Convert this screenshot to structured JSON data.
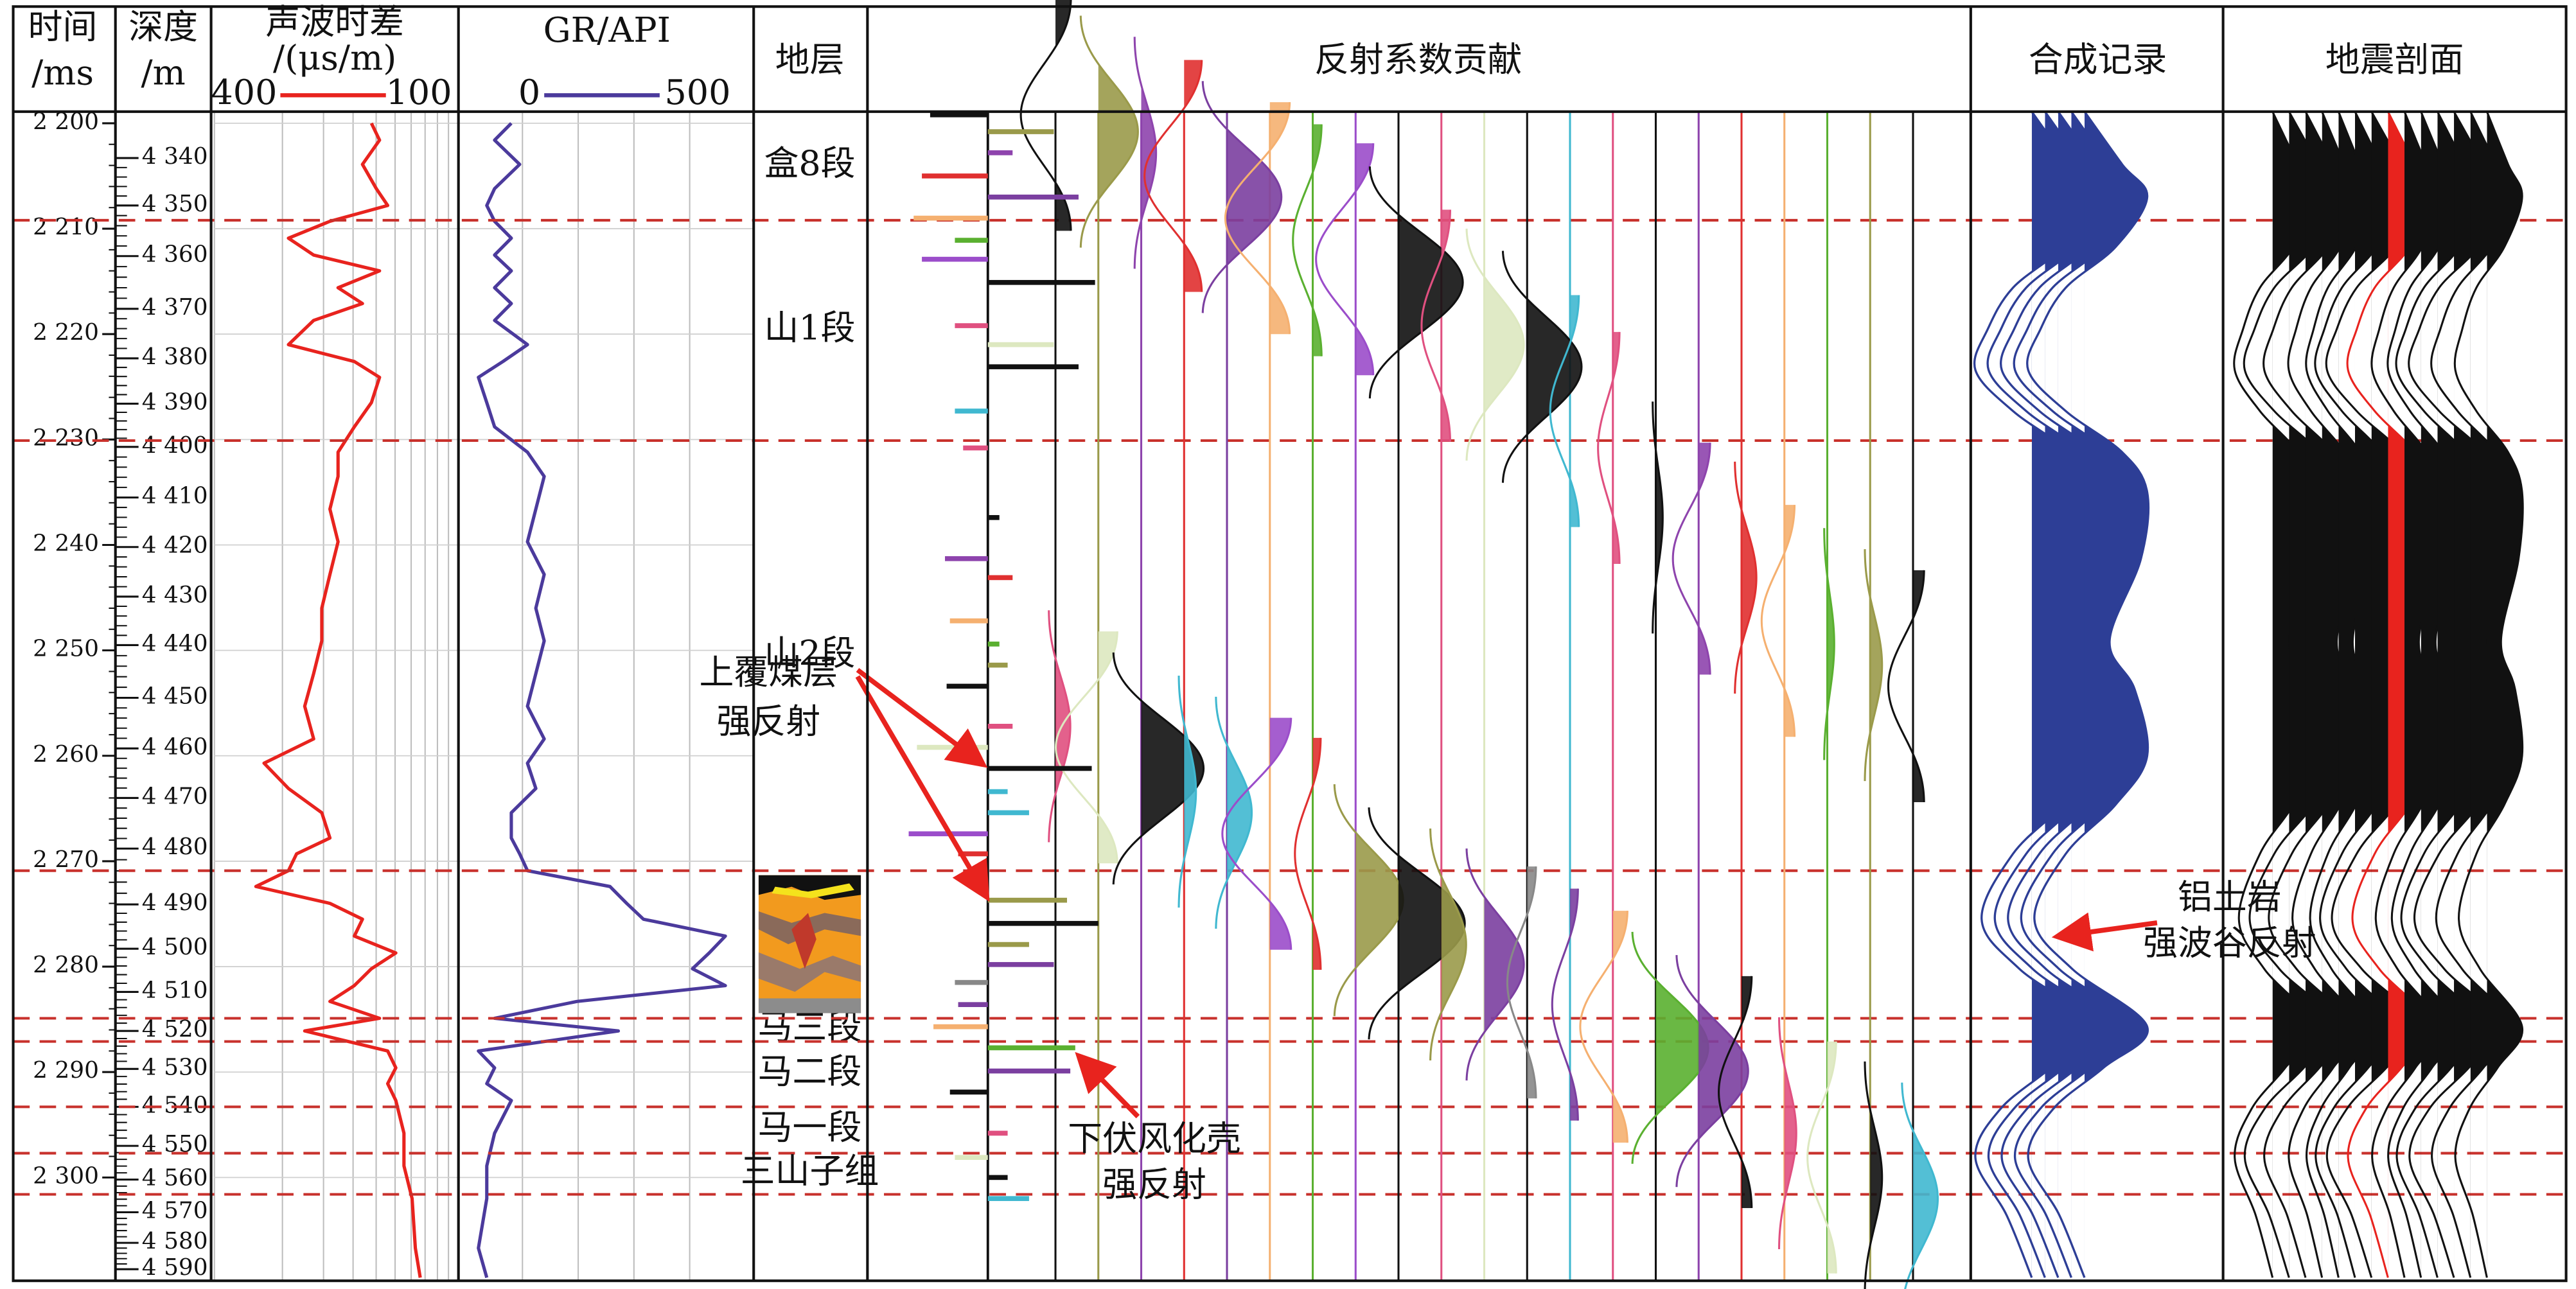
{
  "headers": {
    "time": [
      "时间",
      "/ms"
    ],
    "depth": [
      "深度",
      "/m"
    ],
    "ac": [
      "声波时差",
      "/(μs/m)"
    ],
    "gr": "GR/API",
    "formation": "地层",
    "reflection": "反射系数贡献",
    "synthetic": "合成记录",
    "seismic": "地震剖面"
  },
  "time_axis": {
    "lim": [
      2198.9,
      2309.8
    ],
    "ticks": [
      {
        "value": 2200,
        "label": "2 200"
      },
      {
        "value": 2210,
        "label": "2 210"
      },
      {
        "value": 2220,
        "label": "2 220"
      },
      {
        "value": 2230,
        "label": "2 230"
      },
      {
        "value": 2240,
        "label": "2 240"
      },
      {
        "value": 2250,
        "label": "2 250"
      },
      {
        "value": 2260,
        "label": "2 260"
      },
      {
        "value": 2270,
        "label": "2 270"
      },
      {
        "value": 2280,
        "label": "2 280"
      },
      {
        "value": 2290,
        "label": "2 290"
      },
      {
        "value": 2300,
        "label": "2 300"
      }
    ]
  },
  "depth_axis": {
    "ticks": [
      {
        "value": 4340,
        "label": "4 340",
        "time": 2203.3
      },
      {
        "value": 4350,
        "label": "4 350",
        "time": 2207.8
      },
      {
        "value": 4360,
        "label": "4 360",
        "time": 2212.6
      },
      {
        "value": 4370,
        "label": "4 370",
        "time": 2217.6
      },
      {
        "value": 4380,
        "label": "4 380",
        "time": 2222.3
      },
      {
        "value": 4390,
        "label": "4 390",
        "time": 2226.6
      },
      {
        "value": 4400,
        "label": "4 400",
        "time": 2230.7
      },
      {
        "value": 4410,
        "label": "4 410",
        "time": 2235.5
      },
      {
        "value": 4420,
        "label": "4 420",
        "time": 2240.2
      },
      {
        "value": 4430,
        "label": "4 430",
        "time": 2244.9
      },
      {
        "value": 4440,
        "label": "4 440",
        "time": 2249.5
      },
      {
        "value": 4450,
        "label": "4 450",
        "time": 2254.5
      },
      {
        "value": 4460,
        "label": "4 460",
        "time": 2259.3
      },
      {
        "value": 4470,
        "label": "4 470",
        "time": 2264.0
      },
      {
        "value": 4480,
        "label": "4 480",
        "time": 2268.8
      },
      {
        "value": 4490,
        "label": "4 490",
        "time": 2274.1
      },
      {
        "value": 4500,
        "label": "4 500",
        "time": 2278.3
      },
      {
        "value": 4510,
        "label": "4 510",
        "time": 2282.4
      },
      {
        "value": 4520,
        "label": "4 520",
        "time": 2286.1
      },
      {
        "value": 4530,
        "label": "4 530",
        "time": 2289.7
      },
      {
        "value": 4540,
        "label": "4 540",
        "time": 2293.3
      },
      {
        "value": 4550,
        "label": "4 550",
        "time": 2297.0
      },
      {
        "value": 4560,
        "label": "4 560",
        "time": 2300.2
      },
      {
        "value": 4570,
        "label": "4 570",
        "time": 2303.3
      },
      {
        "value": 4580,
        "label": "4 580",
        "time": 2306.2
      },
      {
        "value": 4590,
        "label": "4 590",
        "time": 2308.7
      }
    ]
  },
  "logs": {
    "time": [
      2200,
      2201.6,
      2203.9,
      2206.2,
      2207.8,
      2209.3,
      2210.9,
      2212.5,
      2214.0,
      2215.6,
      2217.1,
      2218.7,
      2221.0,
      2222.6,
      2224.1,
      2226.5,
      2228.8,
      2231.2,
      2233.5,
      2236.6,
      2239.7,
      2242.8,
      2246.0,
      2249.1,
      2252.2,
      2255.3,
      2258.4,
      2260.7,
      2263.1,
      2265.4,
      2267.8,
      2269.3,
      2270.9,
      2272.4,
      2274.0,
      2275.5,
      2277.1,
      2278.7,
      2280.2,
      2281.8,
      2283.3,
      2284.9,
      2286.1,
      2288.0,
      2289.6,
      2291.1,
      2292.7,
      2295.8,
      2298.9,
      2302.0,
      2306.7,
      2309.5
    ],
    "ac": {
      "xlim": [
        400,
        100
      ],
      "color": "#e8231e",
      "values": [
        207,
        197,
        218,
        201,
        187,
        258,
        309,
        278,
        197,
        248,
        218,
        278,
        309,
        228,
        197,
        207,
        228,
        248,
        248,
        258,
        248,
        258,
        268,
        268,
        278,
        289,
        278,
        339,
        309,
        268,
        258,
        299,
        309,
        349,
        258,
        218,
        228,
        177,
        207,
        228,
        258,
        197,
        289,
        187,
        177,
        187,
        177,
        167,
        167,
        157,
        153,
        147
      ]
    },
    "gr": {
      "xlim": [
        0,
        500
      ],
      "color": "#4b3a9c",
      "values": [
        80,
        50,
        95,
        50,
        36,
        50,
        80,
        50,
        80,
        50,
        80,
        50,
        109,
        65,
        21,
        36,
        50,
        109,
        139,
        124,
        109,
        139,
        124,
        139,
        124,
        109,
        139,
        109,
        124,
        80,
        80,
        95,
        109,
        257,
        287,
        317,
        464,
        435,
        405,
        464,
        198,
        50,
        272,
        21,
        50,
        36,
        80,
        50,
        36,
        36,
        21,
        36
      ]
    }
  },
  "formations": [
    {
      "name": "盒8段",
      "top": 2198.9,
      "base": 2209.2
    },
    {
      "name": "山1段",
      "top": 2209.2,
      "base": 2230.1
    },
    {
      "name": "山2段",
      "top": 2230.1,
      "base": 2270.9
    },
    {
      "name": "马三段",
      "top": 2284.9,
      "base": 2287.1
    },
    {
      "name": "马二段",
      "top": 2287.1,
      "base": 2293.3
    },
    {
      "name": "马一段",
      "top": 2293.3,
      "base": 2297.7
    },
    {
      "name": "三山子组",
      "top": 2297.7,
      "base": 2301.6
    }
  ],
  "reflection": {
    "time": [
      2199.2,
      2200.8,
      2202.8,
      2205.0,
      2207.0,
      2209.0,
      2211.1,
      2212.9,
      2215.1,
      2219.2,
      2221.0,
      2223.1,
      2227.3,
      2230.8,
      2237.4,
      2241.3,
      2243.1,
      2247.2,
      2249.4,
      2251.4,
      2253.4,
      2257.2,
      2259.2,
      2261.2,
      2263.4,
      2265.4,
      2267.4,
      2269.3,
      2273.7,
      2275.9,
      2277.9,
      2279.8,
      2281.5,
      2283.6,
      2285.7,
      2287.7,
      2289.9,
      2291.9,
      2295.8,
      2298.1,
      2300.0,
      2302.0
    ],
    "values": [
      -0.35,
      0.4,
      0.15,
      -0.4,
      0.55,
      -0.45,
      -0.2,
      -0.4,
      0.65,
      -0.2,
      0.4,
      0.55,
      -0.2,
      -0.15,
      0.07,
      -0.26,
      0.15,
      -0.23,
      0.07,
      0.12,
      -0.25,
      0.15,
      -0.43,
      0.63,
      0.12,
      0.25,
      -0.48,
      -0.18,
      0.48,
      0.67,
      0.25,
      0.4,
      -0.2,
      -0.18,
      -0.33,
      0.53,
      0.5,
      -0.23,
      0.12,
      -0.2,
      0.12,
      0.25
    ],
    "colors": [
      "#111111",
      "#9a9a4a",
      "#8e44ad",
      "#e03030",
      "#7b3fa0",
      "#f5b070",
      "#5ab030",
      "#9b4dca",
      "#111111",
      "#e05080",
      "#dde8c0",
      "#111111",
      "#40b8d0",
      "#e05080",
      "#111111",
      "#8e44ad",
      "#e03030",
      "#f5b070",
      "#5ab030",
      "#9a9a4a",
      "#111111",
      "#e05080",
      "#dde8c0",
      "#111111",
      "#40b8d0",
      "#40b8d0",
      "#9b4dca",
      "#e03030",
      "#9a9a4a",
      "#111111",
      "#9a9a4a",
      "#7b3fa0",
      "#888888",
      "#7b3fa0",
      "#f5b070",
      "#5ab030",
      "#7b3fa0",
      "#111111",
      "#e05080",
      "#dde8c0",
      "#111111",
      "#40b8d0"
    ]
  },
  "synthetic": {
    "color": "#2d3e96",
    "time": [
      2198.9,
      2203.9,
      2207.0,
      2211.7,
      2215.6,
      2219.5,
      2223.4,
      2227.3,
      2231.2,
      2235.0,
      2241.3,
      2249.1,
      2253.7,
      2260.0,
      2264.6,
      2269.3,
      2275.5,
      2280.2,
      2285.7,
      2289.6,
      2293.5,
      2298.1,
      2303.6,
      2309.5
    ],
    "values": [
      0,
      0.6,
      1.0,
      0.5,
      -0.3,
      -0.7,
      -0.9,
      -0.3,
      0.6,
      1.0,
      0.9,
      0.4,
      0.8,
      1.0,
      0.5,
      -0.3,
      -0.8,
      -0.2,
      1.0,
      0.3,
      -0.5,
      -0.9,
      -0.4,
      0
    ]
  },
  "annotations": [
    {
      "lines": [
        "上覆煤层",
        "强反射"
      ]
    },
    {
      "lines": [
        "下伏风化壳",
        "强反射"
      ]
    },
    {
      "lines": [
        "铝土岩",
        "强波谷反射"
      ]
    }
  ]
}
